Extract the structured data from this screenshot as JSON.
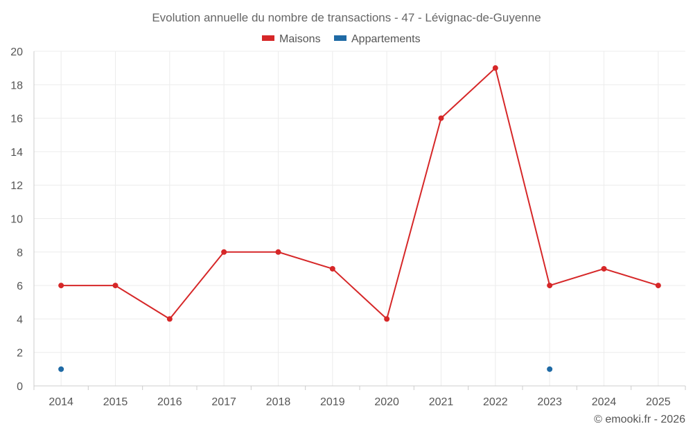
{
  "chart_data": {
    "type": "line",
    "title": "Evolution annuelle du nombre de transactions - 47 - Lévignac-de-Guyenne",
    "categories": [
      "2014",
      "2015",
      "2016",
      "2017",
      "2018",
      "2019",
      "2020",
      "2021",
      "2022",
      "2023",
      "2024",
      "2025"
    ],
    "ylim": [
      0,
      20
    ],
    "yticks": [
      0,
      2,
      4,
      6,
      8,
      10,
      12,
      14,
      16,
      18,
      20
    ],
    "grid": true,
    "legend_position": "top-center",
    "series": [
      {
        "name": "Maisons",
        "color": "#d62728",
        "values": [
          6,
          6,
          4,
          8,
          8,
          7,
          4,
          16,
          19,
          6,
          7,
          6
        ]
      },
      {
        "name": "Appartements",
        "color": "#1f6aa5",
        "values": [
          1,
          null,
          null,
          null,
          null,
          null,
          null,
          null,
          null,
          1,
          null,
          null
        ]
      }
    ]
  },
  "credit": "© emooki.fr - 2026"
}
